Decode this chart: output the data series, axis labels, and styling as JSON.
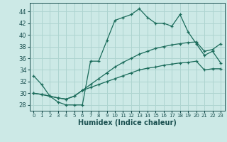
{
  "xlabel": "Humidex (Indice chaleur)",
  "xlim": [
    -0.5,
    23.5
  ],
  "ylim": [
    27,
    45.5
  ],
  "yticks": [
    28,
    30,
    32,
    34,
    36,
    38,
    40,
    42,
    44
  ],
  "xticks": [
    0,
    1,
    2,
    3,
    4,
    5,
    6,
    7,
    8,
    9,
    10,
    11,
    12,
    13,
    14,
    15,
    16,
    17,
    18,
    19,
    20,
    21,
    22,
    23
  ],
  "bg_color": "#cce9e6",
  "grid_color": "#aed4d0",
  "line_color": "#1a6b5a",
  "line1_x": [
    0,
    1,
    2,
    3,
    4,
    5,
    6,
    7,
    8,
    9,
    10,
    11,
    12,
    13,
    14,
    15,
    16,
    17,
    18,
    19,
    20,
    21,
    22,
    23
  ],
  "line1_y": [
    33,
    31.5,
    29.5,
    28.5,
    28,
    28,
    28,
    35.5,
    35.5,
    39,
    42.5,
    43,
    43.5,
    44.5,
    43,
    42,
    42,
    41.5,
    43.5,
    40.5,
    38.5,
    36.5,
    37.2,
    35.2
  ],
  "line2_full_x": [
    0,
    1,
    2,
    3,
    4,
    5,
    6,
    7,
    8,
    9,
    10,
    11,
    12,
    13,
    14,
    15,
    16,
    17,
    18,
    19,
    20,
    21,
    22,
    23
  ],
  "line2_full_y": [
    30,
    29.8,
    29.5,
    29.2,
    29.0,
    29.5,
    30.5,
    31.5,
    32.5,
    33.5,
    34.5,
    35.3,
    36.0,
    36.7,
    37.2,
    37.7,
    38.0,
    38.3,
    38.5,
    38.7,
    38.8,
    37.2,
    37.5,
    38.5
  ],
  "line3_full_x": [
    0,
    1,
    2,
    3,
    4,
    5,
    6,
    7,
    8,
    9,
    10,
    11,
    12,
    13,
    14,
    15,
    16,
    17,
    18,
    19,
    20,
    21,
    22,
    23
  ],
  "line3_full_y": [
    30,
    29.8,
    29.5,
    29.2,
    29.0,
    29.5,
    30.5,
    31.0,
    31.5,
    32.0,
    32.5,
    33.0,
    33.5,
    34.0,
    34.3,
    34.5,
    34.8,
    35.0,
    35.2,
    35.3,
    35.5,
    34.0,
    34.2,
    34.2
  ]
}
